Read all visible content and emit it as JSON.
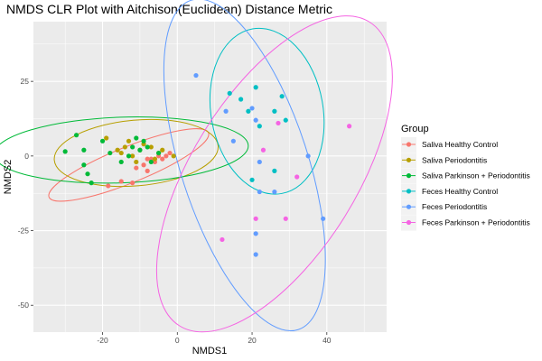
{
  "chart_data": {
    "type": "scatter",
    "title": "NMDS CLR Plot with Aitchison(Euclidean) Distance Metric",
    "xlabel": "NMDS1",
    "ylabel": "NMDS2",
    "xlim": [
      -38.5,
      56
    ],
    "ylim": [
      -59,
      45
    ],
    "xticks": [
      -20,
      0,
      20,
      40
    ],
    "yticks": [
      25,
      0,
      -25,
      -50
    ],
    "grid": true,
    "legend_title": "Group",
    "legend_position": "right",
    "ellipses": true,
    "series": [
      {
        "name": "Saliva Healthy Control",
        "color": "#F8766D",
        "points": [
          [
            -18.5,
            -10
          ],
          [
            -15,
            -8.5
          ],
          [
            -12,
            -9
          ],
          [
            -11,
            -4
          ],
          [
            -9,
            -3
          ],
          [
            -8,
            -5
          ],
          [
            -7,
            -1
          ],
          [
            -6,
            -2
          ],
          [
            -5,
            0
          ],
          [
            -4,
            -1
          ],
          [
            -3,
            0
          ],
          [
            -2,
            1
          ],
          [
            -8,
            -1
          ]
        ],
        "ellipse": {
          "cx": -13,
          "cy": -3,
          "rx": 23,
          "ry": 6,
          "angle_deg": 22
        }
      },
      {
        "name": "Saliva Periodontitis",
        "color": "#B79F00",
        "points": [
          [
            -19,
            6
          ],
          [
            -16,
            2
          ],
          [
            -14,
            3
          ],
          [
            -13,
            5
          ],
          [
            -12,
            0
          ],
          [
            -11,
            -2
          ],
          [
            -10,
            2
          ],
          [
            -9,
            4
          ],
          [
            -7,
            3
          ],
          [
            -6,
            -1
          ],
          [
            -5,
            1
          ],
          [
            -4,
            2
          ],
          [
            -1,
            0
          ],
          [
            -15,
            1
          ]
        ],
        "ellipse": {
          "cx": -11,
          "cy": 1,
          "rx": 22,
          "ry": 11,
          "angle_deg": 5
        }
      },
      {
        "name": "Saliva Parkinson + Periodontitis",
        "color": "#00BA38",
        "points": [
          [
            -30,
            1.5
          ],
          [
            -27,
            7
          ],
          [
            -25,
            -3
          ],
          [
            -24,
            -6
          ],
          [
            -23,
            -9
          ],
          [
            -20,
            5
          ],
          [
            -18,
            1
          ],
          [
            -15,
            -2
          ],
          [
            -13,
            0
          ],
          [
            -12,
            3
          ],
          [
            -11,
            6
          ],
          [
            -10,
            2
          ],
          [
            -9,
            5
          ],
          [
            -8,
            3
          ],
          [
            -7,
            -2
          ],
          [
            -5,
            1
          ],
          [
            -25,
            2
          ]
        ],
        "ellipse": {
          "cx": -15,
          "cy": 2,
          "rx": 34,
          "ry": 11,
          "angle_deg": 2
        }
      },
      {
        "name": "Feces Healthy Control",
        "color": "#00BFC4",
        "points": [
          [
            14,
            21
          ],
          [
            17,
            19
          ],
          [
            19,
            15
          ],
          [
            21,
            23
          ],
          [
            22,
            10
          ],
          [
            26,
            15
          ],
          [
            28,
            20
          ],
          [
            29,
            12
          ],
          [
            26,
            -5
          ],
          [
            20,
            -8
          ]
        ],
        "ellipse": {
          "cx": 24,
          "cy": 15,
          "rx": 15,
          "ry": 28,
          "angle_deg": 10
        }
      },
      {
        "name": "Feces Periodontitis",
        "color": "#619CFF",
        "points": [
          [
            5,
            27
          ],
          [
            13,
            15
          ],
          [
            15,
            5
          ],
          [
            20,
            16
          ],
          [
            21,
            12
          ],
          [
            22,
            -2
          ],
          [
            22,
            -12
          ],
          [
            26,
            -12
          ],
          [
            35,
            0
          ],
          [
            39,
            -21
          ],
          [
            21,
            -26
          ],
          [
            21,
            -33
          ]
        ],
        "ellipse": {
          "cx": 18,
          "cy": -3,
          "rx": 17,
          "ry": 58,
          "angle_deg": 18
        }
      },
      {
        "name": "Feces Parkinson + Periodontitis",
        "color": "#F564E3",
        "points": [
          [
            12,
            -28
          ],
          [
            21,
            -21
          ],
          [
            23,
            2
          ],
          [
            27,
            11
          ],
          [
            32,
            -7
          ],
          [
            29,
            -21
          ],
          [
            46,
            10
          ]
        ],
        "ellipse": {
          "cx": 26,
          "cy": -6,
          "rx": 22,
          "ry": 60,
          "angle_deg": -32
        }
      }
    ]
  }
}
